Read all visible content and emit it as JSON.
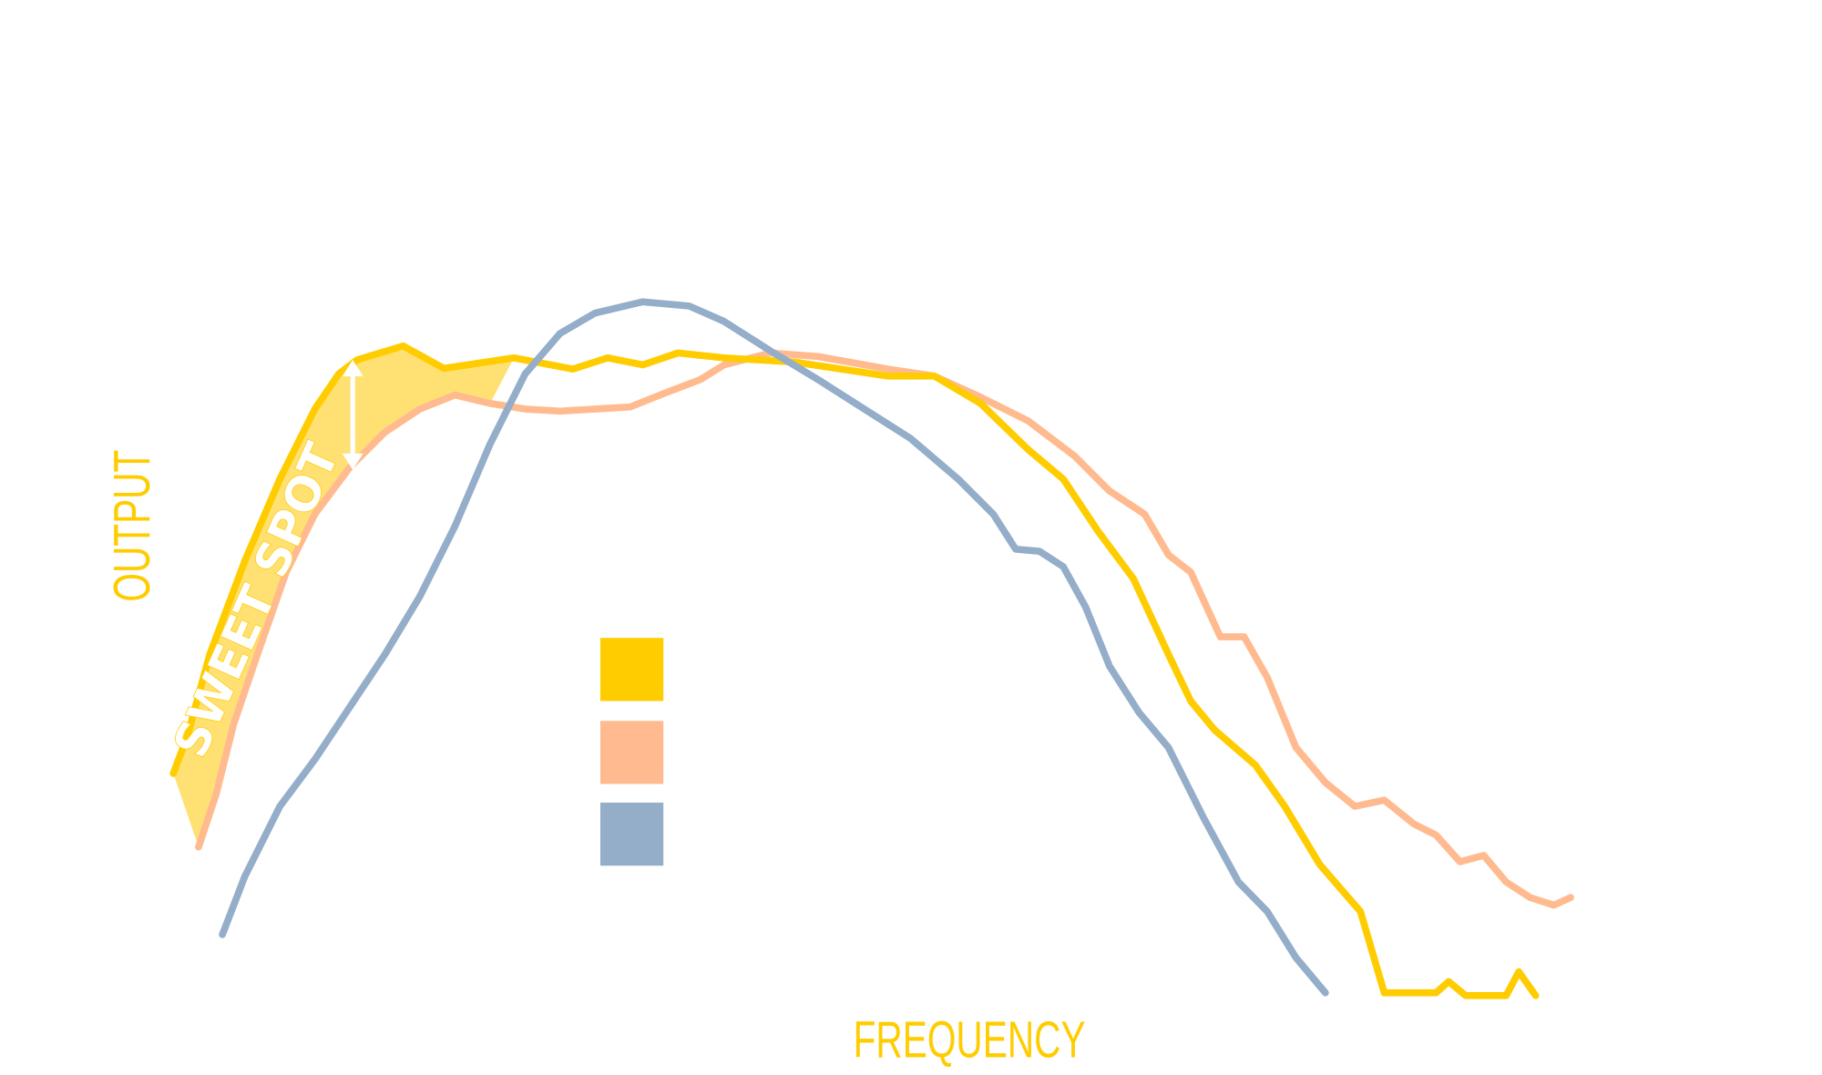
{
  "chart_data": {
    "type": "line",
    "title": "",
    "xlabel": "FREQUENCY",
    "ylabel": "OUTPUT",
    "xlim": [
      0,
      100
    ],
    "ylim": [
      0,
      100
    ],
    "grid": false,
    "legend": {
      "position": "center-left",
      "entries": [
        "",
        "",
        ""
      ]
    },
    "annotation": {
      "text": "SWEET SPOT",
      "range_x": [
        0,
        25
      ]
    },
    "series": [
      {
        "name": "series-yellow",
        "color": "#ffcc00",
        "x": [
          0.7,
          1.7,
          3.3,
          5.8,
          8.3,
          10.8,
          12.5,
          13.8,
          17.1,
          20,
          25,
          29.2,
          31.7,
          34.2,
          36.7,
          40,
          45,
          51.7,
          55,
          58.3,
          61.7,
          64.2,
          66.7,
          69.2,
          71.7,
          73.3,
          75,
          77.9,
          80,
          82.5,
          85.4,
          87.1,
          90.8,
          91.7,
          92.9,
          95.8,
          96.7,
          97.9
        ],
        "y": [
          33,
          38.3,
          50,
          63.3,
          75,
          85,
          90,
          92,
          94,
          90.8,
          92.3,
          90.7,
          92.3,
          91.3,
          93,
          92.3,
          91.7,
          89.7,
          89.7,
          85.8,
          79.2,
          75,
          67.5,
          60.8,
          50,
          43.3,
          39.2,
          34.2,
          28.3,
          20,
          13.3,
          1.7,
          1.7,
          3.3,
          1.3,
          1.3,
          4.7,
          1.3
        ]
      },
      {
        "name": "series-peach",
        "color": "#ffbb8f",
        "x": [
          2.5,
          3.75,
          5,
          6.7,
          8.75,
          10.8,
          13.3,
          15.8,
          18.3,
          20.8,
          23.3,
          25.8,
          28.3,
          30.8,
          33.3,
          35.8,
          38.3,
          40,
          43.3,
          46.7,
          51.7,
          55,
          58.3,
          61.7,
          65,
          67.5,
          70,
          71.7,
          73.3,
          75.4,
          77.1,
          78.75,
          80.8,
          82.9,
          85,
          87.1,
          89.2,
          90.8,
          92.5,
          94.2,
          95.8,
          97.5,
          99.2,
          100.4
        ],
        "y": [
          22.5,
          30,
          40,
          50,
          61.7,
          70,
          76.7,
          81.7,
          85,
          87,
          85.8,
          85,
          84.7,
          85,
          85.3,
          87.3,
          89.2,
          91.3,
          93,
          92.5,
          90.7,
          89.7,
          86.7,
          83.3,
          78.3,
          73.3,
          70,
          64.2,
          61.7,
          52.5,
          52.5,
          46.7,
          36.7,
          31.7,
          28.3,
          29.2,
          25.8,
          24.2,
          20.4,
          21.3,
          17.5,
          15.3,
          14.2,
          15.3
        ]
      },
      {
        "name": "series-blue",
        "color": "#94adc9",
        "x": [
          4.2,
          5.8,
          8.3,
          10.8,
          13.3,
          15.8,
          18.3,
          20.8,
          23.3,
          25.8,
          28.3,
          30.8,
          34.2,
          37.5,
          40,
          43.3,
          46.7,
          50,
          53.3,
          56.7,
          59.2,
          60.8,
          62.5,
          64.2,
          65.8,
          67.5,
          69.6,
          71.7,
          74.2,
          76.7,
          78.75,
          80.8,
          82.9
        ],
        "y": [
          10,
          18.3,
          28.3,
          35,
          42.5,
          50,
          58.3,
          68.3,
          80,
          90,
          95.8,
          98.7,
          100.3,
          99.7,
          97.5,
          93.3,
          89.2,
          85,
          80.8,
          75,
          70,
          65,
          64.7,
          62.5,
          56.7,
          48.3,
          41.7,
          36.7,
          26.7,
          17.5,
          13.3,
          6.7,
          1.7
        ]
      }
    ]
  }
}
